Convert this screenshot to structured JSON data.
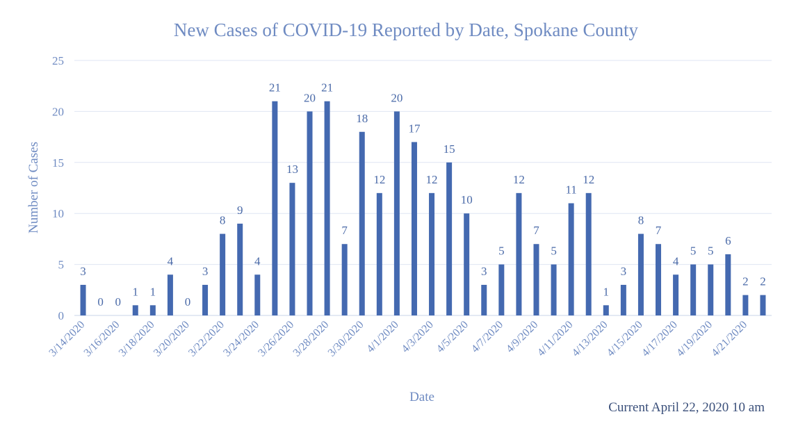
{
  "chart_data": {
    "type": "bar",
    "title": "New Cases of COVID-19 Reported by Date, Spokane County",
    "xlabel": "Date",
    "ylabel": "Number of Cases",
    "ylim": [
      0,
      25
    ],
    "yticks": [
      0,
      5,
      10,
      15,
      20,
      25
    ],
    "grid": true,
    "bar_color": "#4469b0",
    "text_color": "#6f8bc2",
    "categories": [
      "3/14/2020",
      "3/15/2020",
      "3/16/2020",
      "3/17/2020",
      "3/18/2020",
      "3/19/2020",
      "3/20/2020",
      "3/21/2020",
      "3/22/2020",
      "3/23/2020",
      "3/24/2020",
      "3/25/2020",
      "3/26/2020",
      "3/27/2020",
      "3/28/2020",
      "3/29/2020",
      "3/30/2020",
      "3/31/2020",
      "4/1/2020",
      "4/2/2020",
      "4/3/2020",
      "4/4/2020",
      "4/5/2020",
      "4/6/2020",
      "4/7/2020",
      "4/8/2020",
      "4/9/2020",
      "4/10/2020",
      "4/11/2020",
      "4/12/2020",
      "4/13/2020",
      "4/14/2020",
      "4/15/2020",
      "4/16/2020",
      "4/17/2020",
      "4/18/2020",
      "4/19/2020",
      "4/20/2020",
      "4/21/2020",
      "4/22/2020"
    ],
    "tick_labels_shown": [
      "3/14/2020",
      "3/16/2020",
      "3/18/2020",
      "3/20/2020",
      "3/22/2020",
      "3/24/2020",
      "3/26/2020",
      "3/28/2020",
      "3/30/2020",
      "4/1/2020",
      "4/3/2020",
      "4/5/2020",
      "4/7/2020",
      "4/9/2020",
      "4/11/2020",
      "4/13/2020",
      "4/15/2020",
      "4/17/2020",
      "4/19/2020",
      "4/21/2020"
    ],
    "values": [
      3,
      0,
      0,
      1,
      1,
      4,
      0,
      3,
      8,
      9,
      4,
      21,
      13,
      20,
      21,
      7,
      18,
      12,
      20,
      17,
      12,
      15,
      10,
      3,
      5,
      12,
      7,
      5,
      11,
      12,
      1,
      3,
      8,
      7,
      4,
      5,
      5,
      6,
      2,
      2
    ],
    "data_labels": true
  },
  "footer": {
    "note": "Current April 22, 2020 10 am"
  }
}
